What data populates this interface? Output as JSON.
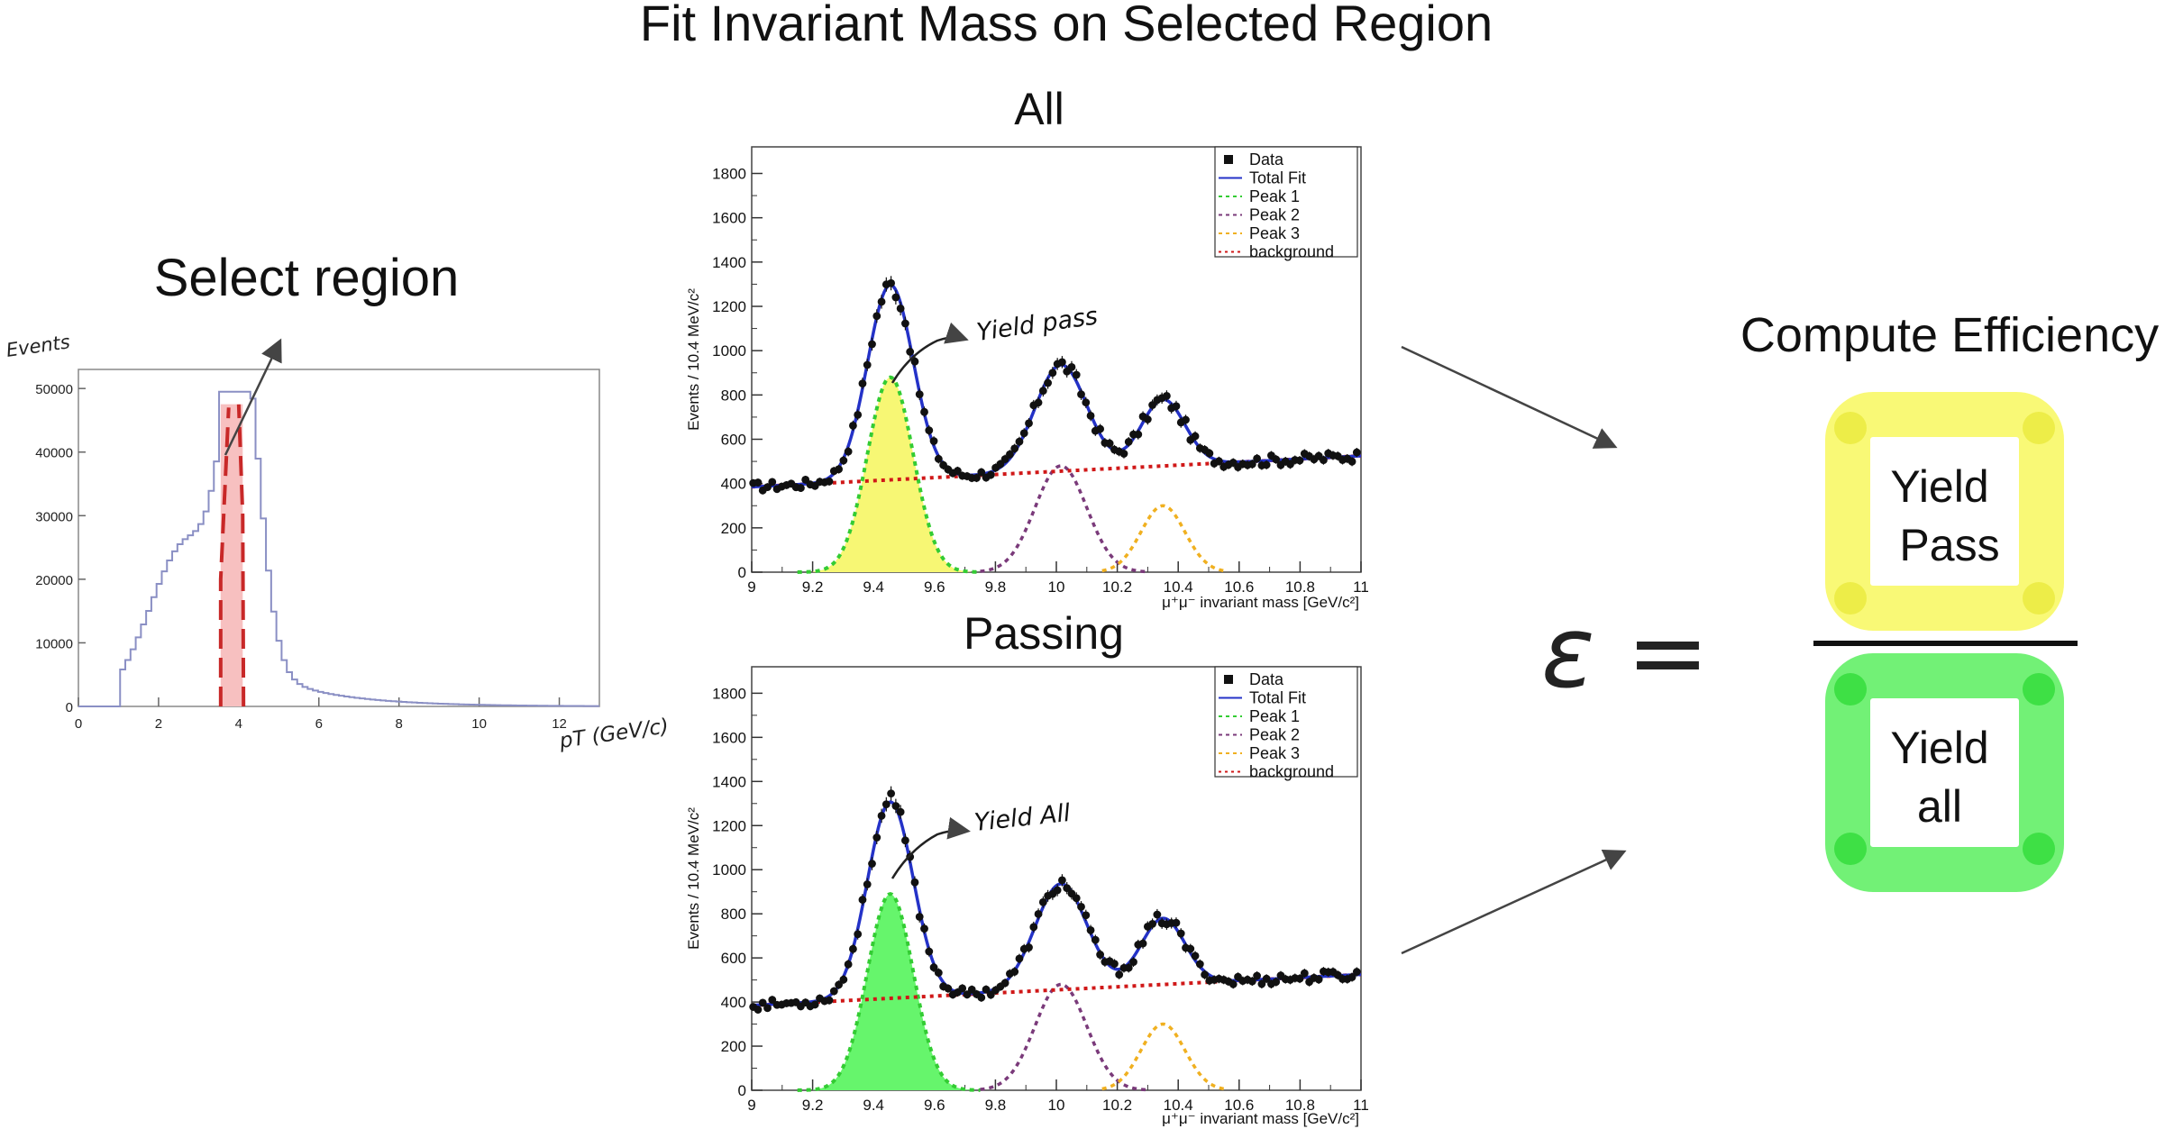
{
  "title": "Fit Invariant Mass on Selected Region",
  "select": {
    "heading": "Select region",
    "ylabel": "Events",
    "xlabel": "pT (GeV/c)",
    "yticks": [
      "0",
      "10000",
      "20000",
      "30000",
      "40000",
      "50000"
    ],
    "xticks": [
      "0",
      "2",
      "4",
      "6",
      "8",
      "10",
      "12"
    ]
  },
  "fits": [
    {
      "id": "all",
      "heading": "All",
      "annotation": "Yield pass",
      "fill": "#f7f774",
      "ylabel": "Events / 10.4 MeV/c²",
      "xlabel": "μ⁺μ⁻ invariant mass [GeV/c²]",
      "yticks": [
        "0",
        "200",
        "400",
        "600",
        "800",
        "1000",
        "1200",
        "1400",
        "1600",
        "1800"
      ],
      "xticks": [
        "9",
        "9.2",
        "9.4",
        "9.6",
        "9.8",
        "10",
        "10.2",
        "10.4",
        "10.6",
        "10.8",
        "11"
      ],
      "legend": [
        "Data",
        "Total Fit",
        "Peak 1",
        "Peak 2",
        "Peak 3",
        "background"
      ]
    },
    {
      "id": "passing",
      "heading": "Passing",
      "annotation": "Yield All",
      "fill": "#66f56c",
      "ylabel": "Events / 10.4 MeV/c²",
      "xlabel": "μ⁺μ⁻ invariant mass [GeV/c²]",
      "yticks": [
        "0",
        "200",
        "400",
        "600",
        "800",
        "1000",
        "1200",
        "1400",
        "1600",
        "1800"
      ],
      "xticks": [
        "9",
        "9.2",
        "9.4",
        "9.6",
        "9.8",
        "10",
        "10.2",
        "10.4",
        "10.6",
        "10.8",
        "11"
      ],
      "legend": [
        "Data",
        "Total Fit",
        "Peak 1",
        "Peak 2",
        "Peak 3",
        "background"
      ]
    }
  ],
  "efficiency": {
    "heading": "Compute Efficiency",
    "symbol": "ε =",
    "numerator": [
      "Yield",
      "Pass"
    ],
    "denominator": [
      "Yield",
      "all"
    ],
    "numerator_color": "#f8f86a",
    "denominator_color": "#66f06a"
  },
  "colors": {
    "total_fit": "#2432c8",
    "peak1": "#33cc33",
    "peak2": "#7a3a7a",
    "peak3": "#f0b020",
    "background": "#d01818",
    "select_band": "#f7c0c0"
  }
}
